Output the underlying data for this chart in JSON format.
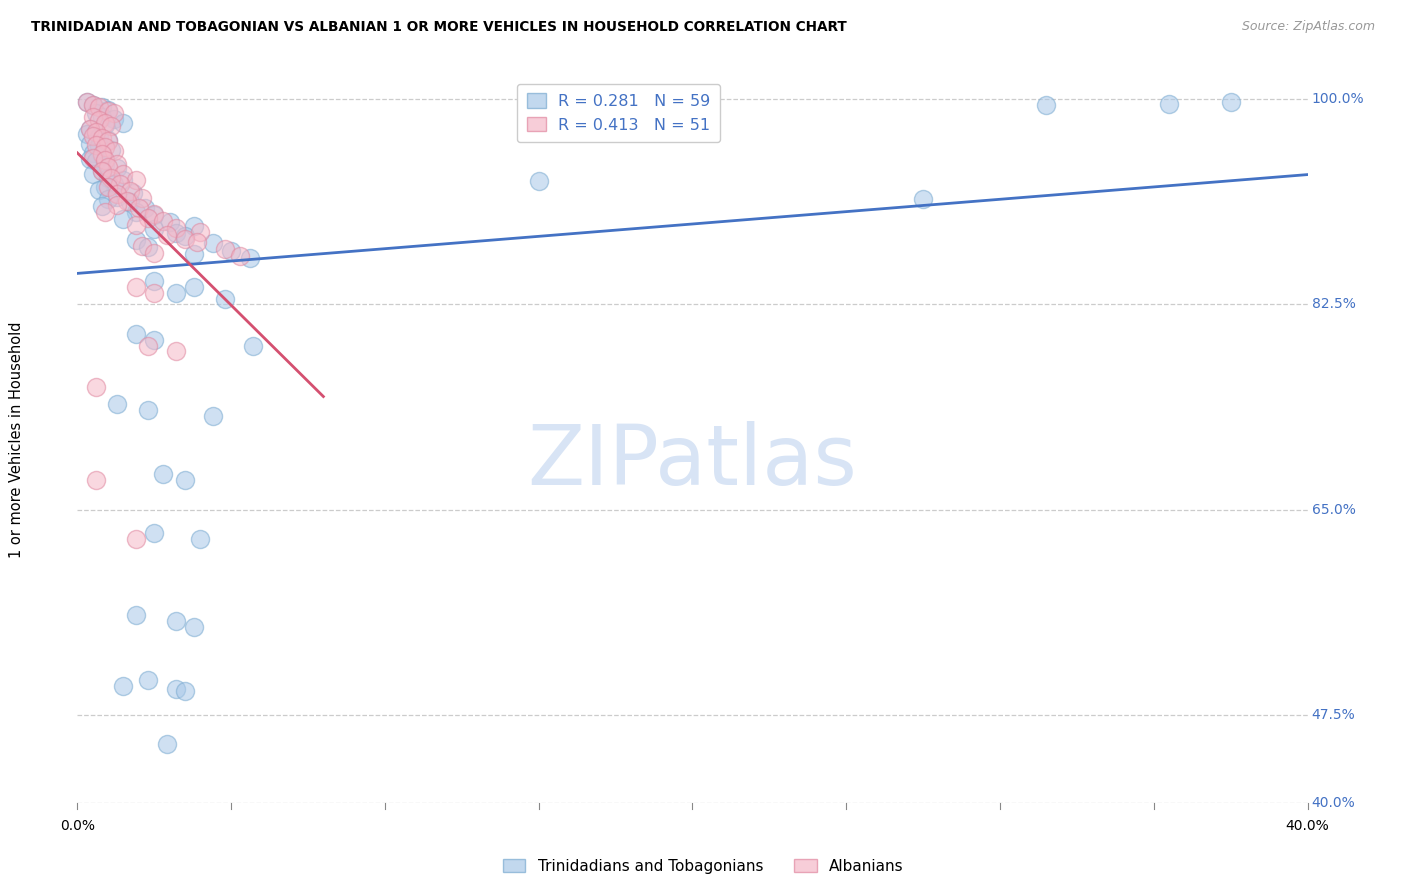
{
  "title": "TRINIDADIAN AND TOBAGONIAN VS ALBANIAN 1 OR MORE VEHICLES IN HOUSEHOLD CORRELATION CHART",
  "source": "Source: ZipAtlas.com",
  "ylabel": "1 or more Vehicles in Household",
  "legend_blue_R": "0.281",
  "legend_blue_N": "59",
  "legend_pink_R": "0.413",
  "legend_pink_N": "51",
  "legend_label_blue": "Trinidadians and Tobagonians",
  "legend_label_pink": "Albanians",
  "x_min": 0.0,
  "x_max": 40.0,
  "y_min": 40.0,
  "y_max": 102.0,
  "y_ticks": [
    40.0,
    47.5,
    65.0,
    82.5,
    100.0
  ],
  "x_ticks_pos": [
    0,
    5,
    10,
    15,
    20,
    25,
    30,
    35,
    40
  ],
  "blue_fill": "#A8C8E8",
  "blue_edge": "#7AAAD0",
  "blue_line": "#4472C4",
  "pink_fill": "#F5B8C8",
  "pink_edge": "#E088A0",
  "pink_line": "#D45070",
  "label_color": "#4472C4",
  "watermark_color": "#D8E4F5",
  "tri_x": [
    0.3,
    0.5,
    0.8,
    1.0,
    0.6,
    0.8,
    1.2,
    1.5,
    0.9,
    0.4,
    0.6,
    0.3,
    0.7,
    1.0,
    0.4,
    0.7,
    1.1,
    0.5,
    0.8,
    0.4,
    0.6,
    0.9,
    1.3,
    0.8,
    0.5,
    1.0,
    1.5,
    1.2,
    0.9,
    0.7,
    1.8,
    1.3,
    1.0,
    1.7,
    0.8,
    2.2,
    1.9,
    2.5,
    1.5,
    3.0,
    3.8,
    2.5,
    3.2,
    3.5,
    1.9,
    4.4,
    2.3,
    5.0,
    3.8,
    5.6,
    2.5,
    3.8,
    3.2,
    4.8,
    1.9,
    2.5,
    5.7,
    1.3,
    2.3,
    4.4,
    2.8,
    3.5,
    2.5,
    4.0,
    1.9,
    3.2,
    3.8,
    2.3,
    1.5,
    3.2,
    3.5,
    2.9,
    31.5,
    37.5,
    15.0,
    35.5,
    27.5
  ],
  "tri_y": [
    99.8,
    99.5,
    99.3,
    99.1,
    98.8,
    98.5,
    98.3,
    98.0,
    97.8,
    97.5,
    97.2,
    97.0,
    96.8,
    96.5,
    96.2,
    96.0,
    95.7,
    95.4,
    95.2,
    94.9,
    94.7,
    94.4,
    94.1,
    93.9,
    93.6,
    93.3,
    93.1,
    92.8,
    92.5,
    92.3,
    92.0,
    91.7,
    91.5,
    91.2,
    90.9,
    90.7,
    90.4,
    90.1,
    89.8,
    89.5,
    89.2,
    88.9,
    88.6,
    88.3,
    88.0,
    87.7,
    87.4,
    87.1,
    86.8,
    86.5,
    84.5,
    84.0,
    83.5,
    83.0,
    80.0,
    79.5,
    79.0,
    74.0,
    73.5,
    73.0,
    68.0,
    67.5,
    63.0,
    62.5,
    56.0,
    55.5,
    55.0,
    50.5,
    50.0,
    49.7,
    49.5,
    45.0,
    99.5,
    99.8,
    93.0,
    99.6,
    91.5
  ],
  "alb_x": [
    0.3,
    0.5,
    0.7,
    1.0,
    1.2,
    0.5,
    0.7,
    0.9,
    1.1,
    0.4,
    0.6,
    0.5,
    0.8,
    1.0,
    0.6,
    0.9,
    1.2,
    0.8,
    0.5,
    0.9,
    1.3,
    1.0,
    0.8,
    1.5,
    1.1,
    1.9,
    1.4,
    1.0,
    1.7,
    1.3,
    2.1,
    1.6,
    1.3,
    2.0,
    0.9,
    2.5,
    2.3,
    2.8,
    1.9,
    3.2,
    4.0,
    2.9,
    3.5,
    3.9,
    2.1,
    4.8,
    2.5,
    5.3,
    1.9,
    2.5,
    2.3,
    3.2,
    0.6,
    0.6,
    1.9
  ],
  "alb_y": [
    99.8,
    99.5,
    99.3,
    99.0,
    98.8,
    98.5,
    98.2,
    98.0,
    97.7,
    97.5,
    97.2,
    96.9,
    96.7,
    96.4,
    96.1,
    95.9,
    95.6,
    95.3,
    95.0,
    94.8,
    94.5,
    94.2,
    93.9,
    93.6,
    93.3,
    93.1,
    92.8,
    92.5,
    92.2,
    91.9,
    91.6,
    91.3,
    91.0,
    90.7,
    90.4,
    90.2,
    89.9,
    89.6,
    89.3,
    89.0,
    88.7,
    88.4,
    88.1,
    87.8,
    87.5,
    87.2,
    86.9,
    86.6,
    84.0,
    83.5,
    79.0,
    78.5,
    75.5,
    67.5,
    62.5
  ]
}
